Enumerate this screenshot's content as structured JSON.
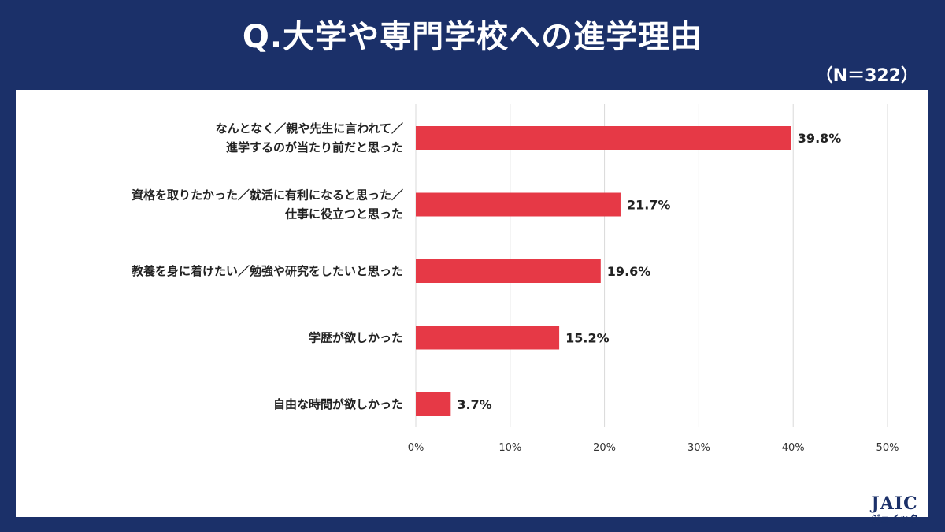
{
  "title": "Q.大学や専門学校への進学理由",
  "sample_size": "（N＝322）",
  "logo": {
    "main": "JAIC",
    "sub": "ジェイック"
  },
  "colors": {
    "background": "#1b3069",
    "bar": "#e63946",
    "grid": "#d9d9d9"
  },
  "chart_data": {
    "type": "bar",
    "orientation": "horizontal",
    "categories": [
      [
        "なんとなく／親や先生に言われて／",
        "進学するのが当たり前だと思った"
      ],
      [
        "資格を取りたかった／就活に有利になると思った／",
        "仕事に役立つと思った"
      ],
      [
        "教養を身に着けたい／勉強や研究をしたいと思った"
      ],
      [
        "学歴が欲しかった"
      ],
      [
        "自由な時間が欲しかった"
      ]
    ],
    "values": [
      39.8,
      21.7,
      19.6,
      15.2,
      3.7
    ],
    "value_labels": [
      "39.8%",
      "21.7%",
      "19.6%",
      "15.2%",
      "3.7%"
    ],
    "xlim": [
      0,
      50
    ],
    "ticks": [
      "0%",
      "10%",
      "20%",
      "30%",
      "40%",
      "50%"
    ],
    "grid": true
  }
}
